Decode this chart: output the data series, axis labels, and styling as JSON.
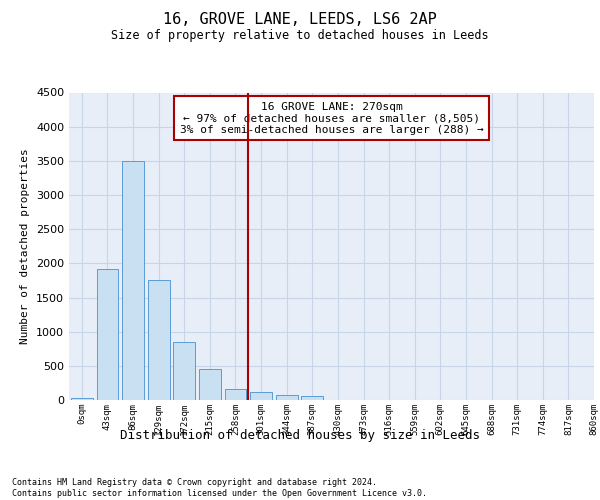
{
  "title": "16, GROVE LANE, LEEDS, LS6 2AP",
  "subtitle": "Size of property relative to detached houses in Leeds",
  "xlabel": "Distribution of detached houses by size in Leeds",
  "ylabel": "Number of detached properties",
  "bar_values": [
    30,
    1920,
    3500,
    1760,
    850,
    460,
    160,
    110,
    75,
    55,
    0,
    0,
    0,
    0,
    0,
    0,
    0,
    0,
    0,
    0
  ],
  "bin_labels": [
    "0sqm",
    "43sqm",
    "86sqm",
    "129sqm",
    "172sqm",
    "215sqm",
    "258sqm",
    "301sqm",
    "344sqm",
    "387sqm",
    "430sqm",
    "473sqm",
    "516sqm",
    "559sqm",
    "602sqm",
    "645sqm",
    "688sqm",
    "731sqm",
    "774sqm",
    "817sqm",
    "860sqm"
  ],
  "bar_color": "#c9dff2",
  "bar_edgecolor": "#5b9bd5",
  "grid_color": "#c8d4e8",
  "bg_color": "#e8eef8",
  "vline_x": 6.5,
  "vline_color": "#aa0000",
  "annotation_text": "16 GROVE LANE: 270sqm\n← 97% of detached houses are smaller (8,505)\n3% of semi-detached houses are larger (288) →",
  "annotation_box_color": "#ffffff",
  "annotation_box_edge": "#aa0000",
  "ylim": [
    0,
    4500
  ],
  "yticks": [
    0,
    500,
    1000,
    1500,
    2000,
    2500,
    3000,
    3500,
    4000,
    4500
  ],
  "footer_line1": "Contains HM Land Registry data © Crown copyright and database right 2024.",
  "footer_line2": "Contains public sector information licensed under the Open Government Licence v3.0."
}
